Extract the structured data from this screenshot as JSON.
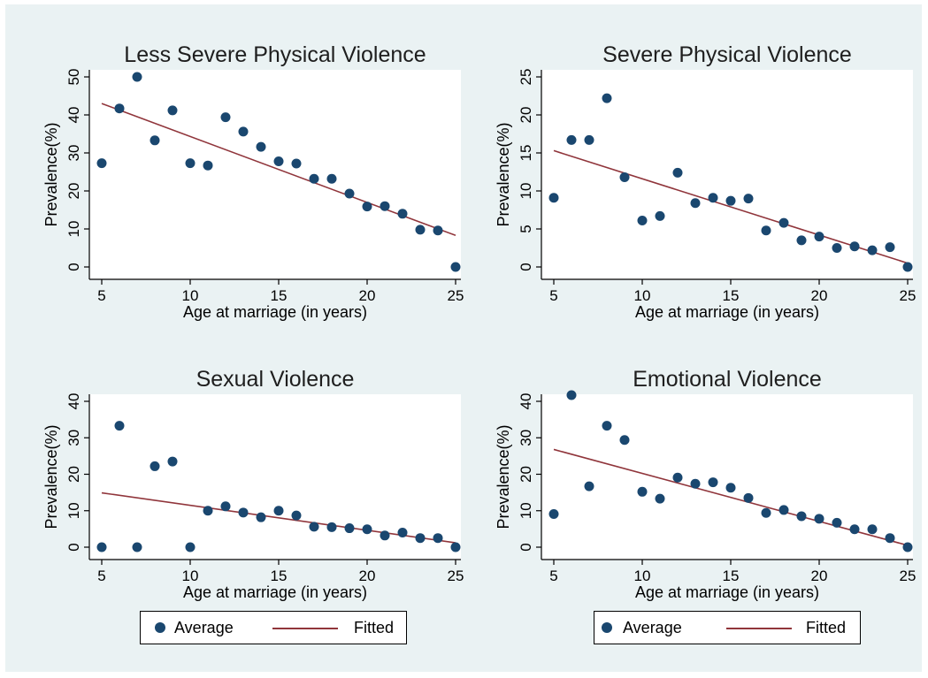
{
  "colors": {
    "background": "#eaf2f3",
    "plot_area": "#ffffff",
    "marker": "#1a476f",
    "fitted_line": "#90353b",
    "axis": "#000000"
  },
  "legend": {
    "average_label": "Average",
    "fitted_label": "Fitted"
  },
  "chart_data": [
    {
      "type": "scatter",
      "title": "Less Severe Physical Violence",
      "xlabel": "Age at marriage (in years)",
      "ylabel": "Prevalence(%)",
      "xlim": [
        5,
        25
      ],
      "ylim": [
        0,
        50
      ],
      "xticks": [
        5,
        10,
        15,
        20,
        25
      ],
      "yticks": [
        0,
        10,
        20,
        30,
        40,
        50
      ],
      "grid": false,
      "series": [
        {
          "name": "Average",
          "x": [
            5,
            6,
            7,
            8,
            9,
            10,
            11,
            12,
            13,
            14,
            15,
            16,
            17,
            18,
            19,
            20,
            21,
            22,
            23,
            24,
            25
          ],
          "y": [
            27.3,
            41.7,
            50.0,
            33.3,
            41.2,
            27.3,
            26.7,
            39.4,
            35.6,
            31.6,
            27.8,
            27.2,
            23.2,
            23.2,
            19.3,
            15.9,
            16.0,
            14.0,
            9.8,
            9.6,
            0.0
          ]
        },
        {
          "name": "Fitted",
          "x": [
            5,
            25
          ],
          "y": [
            43.0,
            8.3
          ]
        }
      ]
    },
    {
      "type": "scatter",
      "title": "Severe Physical Violence",
      "xlabel": "Age at marriage (in years)",
      "ylabel": "Prevalence(%)",
      "xlim": [
        5,
        25
      ],
      "ylim": [
        0,
        25
      ],
      "xticks": [
        5,
        10,
        15,
        20,
        25
      ],
      "yticks": [
        0,
        5,
        10,
        15,
        20,
        25
      ],
      "grid": false,
      "series": [
        {
          "name": "Average",
          "x": [
            5,
            6,
            7,
            8,
            9,
            10,
            11,
            12,
            13,
            14,
            15,
            16,
            17,
            18,
            19,
            20,
            21,
            22,
            23,
            24,
            25
          ],
          "y": [
            9.1,
            16.7,
            16.7,
            22.2,
            11.8,
            6.1,
            6.7,
            12.4,
            8.4,
            9.1,
            8.7,
            9.0,
            4.8,
            5.8,
            3.5,
            4.0,
            2.5,
            2.7,
            2.2,
            2.6,
            0.0
          ]
        },
        {
          "name": "Fitted",
          "x": [
            5,
            25
          ],
          "y": [
            15.3,
            0.5
          ]
        }
      ]
    },
    {
      "type": "scatter",
      "title": "Sexual Violence",
      "xlabel": "Age at marriage (in years)",
      "ylabel": "Prevalence(%)",
      "xlim": [
        5,
        25
      ],
      "ylim": [
        0,
        40
      ],
      "xticks": [
        5,
        10,
        15,
        20,
        25
      ],
      "yticks": [
        0,
        10,
        20,
        30,
        40
      ],
      "grid": false,
      "series": [
        {
          "name": "Average",
          "x": [
            5,
            6,
            7,
            8,
            9,
            10,
            11,
            12,
            13,
            14,
            15,
            16,
            17,
            18,
            19,
            20,
            21,
            22,
            23,
            24,
            25
          ],
          "y": [
            0.0,
            33.3,
            0.0,
            22.2,
            23.5,
            0.0,
            10.0,
            11.2,
            9.5,
            8.2,
            10.0,
            8.7,
            5.6,
            5.5,
            5.2,
            4.9,
            3.2,
            4.0,
            2.5,
            2.5,
            0.0
          ]
        },
        {
          "name": "Fitted",
          "x": [
            5,
            25
          ],
          "y": [
            14.9,
            1.2
          ]
        }
      ]
    },
    {
      "type": "scatter",
      "title": "Emotional Violence",
      "xlabel": "Age at marriage (in years)",
      "ylabel": "Prevalence(%)",
      "xlim": [
        5,
        25
      ],
      "ylim": [
        0,
        40
      ],
      "xticks": [
        5,
        10,
        15,
        20,
        25
      ],
      "yticks": [
        0,
        10,
        20,
        30,
        40
      ],
      "grid": false,
      "series": [
        {
          "name": "Average",
          "x": [
            5,
            6,
            7,
            8,
            9,
            10,
            11,
            12,
            13,
            14,
            15,
            16,
            17,
            18,
            19,
            20,
            21,
            22,
            23,
            24,
            25
          ],
          "y": [
            9.1,
            41.7,
            16.7,
            33.3,
            29.4,
            15.2,
            13.3,
            19.1,
            17.4,
            17.8,
            16.3,
            13.5,
            9.4,
            10.2,
            8.5,
            7.8,
            6.7,
            4.9,
            4.9,
            2.5,
            0.0
          ]
        },
        {
          "name": "Fitted",
          "x": [
            5,
            25
          ],
          "y": [
            26.8,
            0.5
          ]
        }
      ]
    }
  ]
}
